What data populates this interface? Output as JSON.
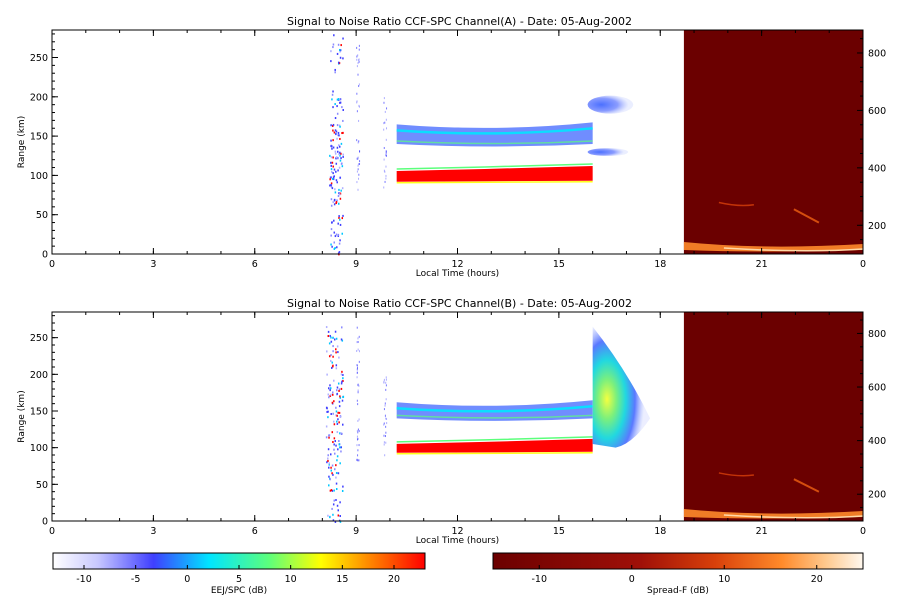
{
  "chart_data": [
    {
      "type": "heatmap",
      "title": "Signal to Noise Ratio CCF-SPC Channel(A) - Date: 05-Aug-2002",
      "xlabel": "Local Time (hours)",
      "ylabel": "Range (km)",
      "xlim": [
        0,
        24
      ],
      "ylim": [
        0,
        285
      ],
      "x_ticks": [
        "0",
        "3",
        "6",
        "9",
        "12",
        "15",
        "18",
        "21",
        "0"
      ],
      "y_ticks": [
        "0",
        "50",
        "100",
        "150",
        "200",
        "250"
      ],
      "right_ylim": [
        100,
        880
      ],
      "right_y_ticks": [
        "200",
        "400",
        "600",
        "800"
      ],
      "features": [
        {
          "kind": "EEJ echoes",
          "x": [
            10.2,
            16.0
          ],
          "y": [
            92,
            112
          ],
          "snr_db": 22
        },
        {
          "kind": "150 km echoes",
          "x": [
            10.2,
            16.0
          ],
          "y": [
            140,
            165
          ],
          "snr_db": 2
        },
        {
          "kind": "Spread-F plume",
          "x": [
            16.0,
            17.5
          ],
          "y": [
            90,
            200
          ],
          "snr_db": 5
        },
        {
          "kind": "Interference burst",
          "x": [
            8.2,
            8.6
          ],
          "y": [
            0,
            280
          ],
          "snr_db": 0
        },
        {
          "kind": "Spread-F background",
          "x": [
            18.7,
            24.0
          ],
          "y": [
            0,
            285
          ],
          "snr_db": -15
        }
      ]
    },
    {
      "type": "heatmap",
      "title": "Signal to Noise Ratio CCF-SPC Channel(B) - Date: 05-Aug-2002",
      "xlabel": "Local Time (hours)",
      "ylabel": "Range (km)",
      "xlim": [
        0,
        24
      ],
      "ylim": [
        0,
        285
      ],
      "x_ticks": [
        "0",
        "3",
        "6",
        "9",
        "12",
        "15",
        "18",
        "21",
        "0"
      ],
      "y_ticks": [
        "0",
        "50",
        "100",
        "150",
        "200",
        "250"
      ],
      "right_ylim": [
        100,
        880
      ],
      "right_y_ticks": [
        "200",
        "400",
        "600",
        "800"
      ],
      "features": [
        {
          "kind": "EEJ echoes",
          "x": [
            10.2,
            16.0
          ],
          "y": [
            93,
            112
          ],
          "snr_db": 22
        },
        {
          "kind": "150 km echoes",
          "x": [
            10.2,
            16.0
          ],
          "y": [
            140,
            162
          ],
          "snr_db": 2
        },
        {
          "kind": "Spread-F plume",
          "x": [
            16.0,
            17.7
          ],
          "y": [
            100,
            265
          ],
          "snr_db": 8
        },
        {
          "kind": "Interference burst",
          "x": [
            8.1,
            8.6
          ],
          "y": [
            0,
            270
          ],
          "snr_db": 0
        },
        {
          "kind": "Spread-F background",
          "x": [
            18.7,
            24.0
          ],
          "y": [
            0,
            285
          ],
          "snr_db": -15
        }
      ]
    }
  ],
  "colorbars": [
    {
      "label": "EEJ/SPC (dB)",
      "range": [
        -13,
        23
      ],
      "ticks": [
        "-10",
        "-5",
        "0",
        "5",
        "10",
        "15",
        "20"
      ],
      "colors": [
        "#ffffff",
        "#3f3fff",
        "#00e5ff",
        "#5cff7c",
        "#ffff00",
        "#ff8800",
        "#ff0000"
      ]
    },
    {
      "label": "Spread-F (dB)",
      "range": [
        -15,
        25
      ],
      "ticks": [
        "-10",
        "0",
        "10",
        "20"
      ],
      "colors": [
        "#6b0000",
        "#a01008",
        "#d8400a",
        "#ff8a2a",
        "#ffc98e",
        "#fff8ef"
      ]
    }
  ]
}
